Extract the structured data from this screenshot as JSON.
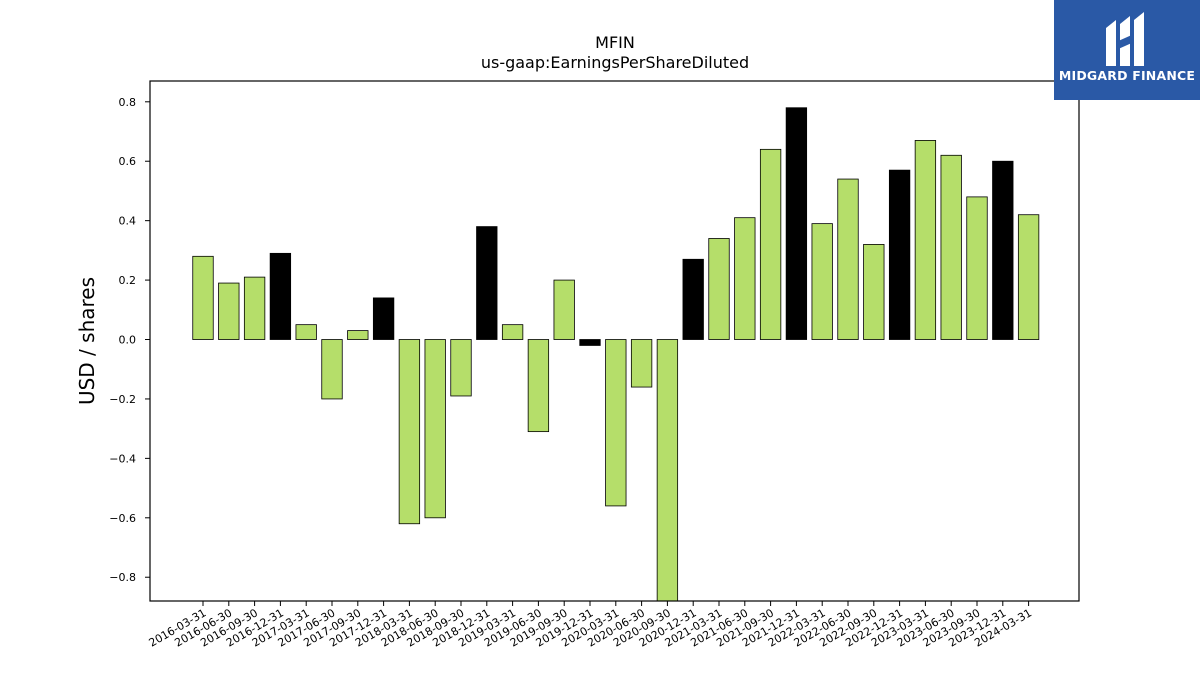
{
  "chart_data": {
    "type": "bar",
    "title": "MFIN",
    "subtitle": "us-gaap:EarningsPerShareDiluted",
    "xlabel": "",
    "ylabel": "USD / shares",
    "ylim": [
      -0.88,
      0.87
    ],
    "yticks": [
      -0.8,
      -0.6,
      -0.4,
      -0.2,
      0.0,
      0.2,
      0.4,
      0.6,
      0.8
    ],
    "ytick_labels": [
      "−0.8",
      "−0.6",
      "−0.4",
      "−0.2",
      "0.0",
      "0.2",
      "0.4",
      "0.6",
      "0.8"
    ],
    "grid": false,
    "categories": [
      "2016-03-31",
      "2016-06-30",
      "2016-09-30",
      "2016-12-31",
      "2017-03-31",
      "2017-06-30",
      "2017-09-30",
      "2017-12-31",
      "2018-03-31",
      "2018-06-30",
      "2018-09-30",
      "2018-12-31",
      "2019-03-31",
      "2019-06-30",
      "2019-09-30",
      "2019-12-31",
      "2020-03-31",
      "2020-06-30",
      "2020-09-30",
      "2020-12-31",
      "2021-03-31",
      "2021-06-30",
      "2021-09-30",
      "2021-12-31",
      "2022-03-31",
      "2022-06-30",
      "2022-09-30",
      "2022-12-31",
      "2023-03-31",
      "2023-06-30",
      "2023-09-30",
      "2023-12-31",
      "2024-03-31"
    ],
    "values": [
      0.28,
      0.19,
      0.21,
      0.29,
      0.05,
      -0.2,
      0.03,
      0.14,
      -0.62,
      -0.6,
      -0.19,
      0.38,
      0.05,
      -0.31,
      0.2,
      -0.02,
      -0.56,
      -0.16,
      -0.95,
      0.27,
      0.34,
      0.41,
      0.64,
      0.78,
      0.39,
      0.54,
      0.32,
      0.57,
      0.67,
      0.62,
      0.48,
      0.6,
      0.42
    ],
    "bar_colors": [
      "#b5de6a",
      "#b5de6a",
      "#b5de6a",
      "#000000",
      "#b5de6a",
      "#b5de6a",
      "#b5de6a",
      "#000000",
      "#b5de6a",
      "#b5de6a",
      "#b5de6a",
      "#000000",
      "#b5de6a",
      "#b5de6a",
      "#b5de6a",
      "#000000",
      "#b5de6a",
      "#b5de6a",
      "#b5de6a",
      "#000000",
      "#b5de6a",
      "#b5de6a",
      "#b5de6a",
      "#000000",
      "#b5de6a",
      "#b5de6a",
      "#b5de6a",
      "#000000",
      "#b5de6a",
      "#b5de6a",
      "#b5de6a",
      "#000000",
      "#b5de6a"
    ]
  },
  "colors": {
    "quarter_bar": "#b5de6a",
    "year_end_bar": "#000000",
    "logo_bg": "#2a59a6"
  },
  "logo": {
    "text": "MIDGARD FINANCE",
    "icon": "midgard-logo-icon"
  }
}
